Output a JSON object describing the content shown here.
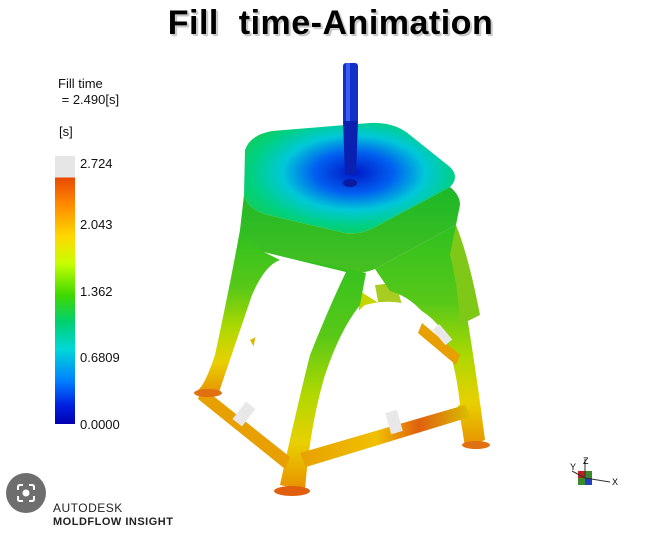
{
  "title": "Fill  time-Animation",
  "result": {
    "name": "Fill time",
    "value_line": " = 2.490[s]",
    "unit": "[s]"
  },
  "legend": {
    "ticks": [
      "2.724",
      "2.043",
      "1.362",
      "0.6809",
      "0.0000"
    ]
  },
  "brand": {
    "company": "AUTODESK",
    "product": "MOLDFLOW INSIGHT"
  },
  "triad": {
    "y": "Y",
    "z": "Z",
    "x": "X"
  },
  "icons": [
    "lens-search-icon",
    "axis-triad-icon"
  ],
  "colors": {
    "background": "#ffffff",
    "scale_top": "#e84800",
    "scale_bottom": "#0000b0",
    "unfilled": "#e6e6e6"
  }
}
